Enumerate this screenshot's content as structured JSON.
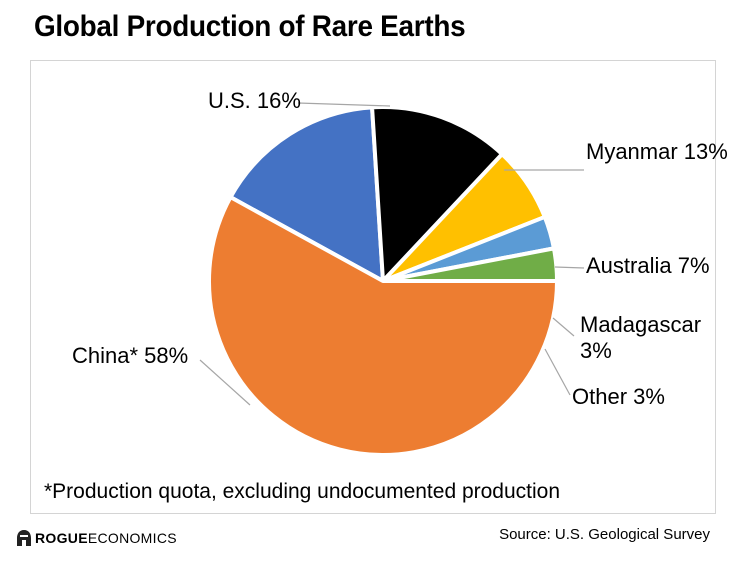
{
  "title": "Global Production of Rare Earths",
  "footnote": "*Production quota, excluding undocumented production",
  "footer": {
    "brand_bold": "ROGUE",
    "brand_rest": " ECONOMICS",
    "source": "Source: U.S. Geological Survey"
  },
  "chart_data": {
    "type": "pie",
    "title": "Global Production of Rare Earths",
    "slices": [
      {
        "label": "U.S. 16%",
        "value": 16,
        "color": "#4472c4"
      },
      {
        "label": "Myanmar 13%",
        "value": 13,
        "color": "#000000"
      },
      {
        "label": "Australia 7%",
        "value": 7,
        "color": "#ffc000"
      },
      {
        "label": "Madagascar 3%",
        "value": 3,
        "color": "#5b9bd5"
      },
      {
        "label": "Other 3%",
        "value": 3,
        "color": "#70ad47"
      },
      {
        "label": "China* 58%",
        "value": 58,
        "color": "#ed7d31"
      }
    ]
  }
}
